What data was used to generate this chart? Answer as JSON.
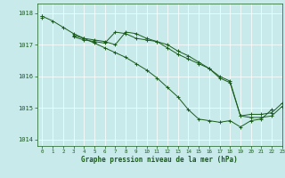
{
  "bg_color": "#c8eaea",
  "plot_bg_color": "#c8eaea",
  "grid_color": "#ffffff",
  "line_color": "#1a5c1a",
  "marker_color": "#1a5c1a",
  "xlabel": "Graphe pression niveau de la mer (hPa)",
  "xlabel_color": "#1a5c1a",
  "tick_color": "#1a5c1a",
  "ylim": [
    1013.8,
    1018.3
  ],
  "xlim": [
    -0.5,
    23
  ],
  "yticks": [
    1014,
    1015,
    1016,
    1017,
    1018
  ],
  "xticks": [
    0,
    1,
    2,
    3,
    4,
    5,
    6,
    7,
    8,
    9,
    10,
    11,
    12,
    13,
    14,
    15,
    16,
    17,
    18,
    19,
    20,
    21,
    22,
    23
  ],
  "series": [
    [
      1017.9,
      1017.75,
      1017.55,
      1017.35,
      1017.2,
      1017.05,
      1016.9,
      1016.75,
      1016.6,
      1016.4,
      1016.2,
      1015.95,
      1015.65,
      1015.35,
      1014.95,
      1014.65,
      1014.6,
      1014.55,
      1014.6,
      1014.4,
      1014.6,
      1014.65,
      1014.95,
      null
    ],
    [
      1017.85,
      null,
      null,
      1017.25,
      1017.15,
      1017.1,
      1017.05,
      1017.4,
      1017.35,
      1017.2,
      1017.15,
      1017.1,
      1016.9,
      1016.7,
      1016.55,
      1016.4,
      1016.25,
      1015.95,
      1015.8,
      1014.75,
      1014.7,
      1014.7,
      1014.75,
      1015.05
    ],
    [
      1017.9,
      null,
      null,
      1017.3,
      1017.2,
      1017.15,
      1017.1,
      1017.0,
      1017.4,
      1017.35,
      1017.2,
      1017.1,
      1017.0,
      1016.8,
      1016.65,
      1016.45,
      1016.25,
      1016.0,
      1015.85,
      1014.75,
      1014.8,
      1014.8,
      1014.85,
      1015.15
    ]
  ],
  "figsize": [
    3.2,
    2.0
  ],
  "dpi": 100
}
